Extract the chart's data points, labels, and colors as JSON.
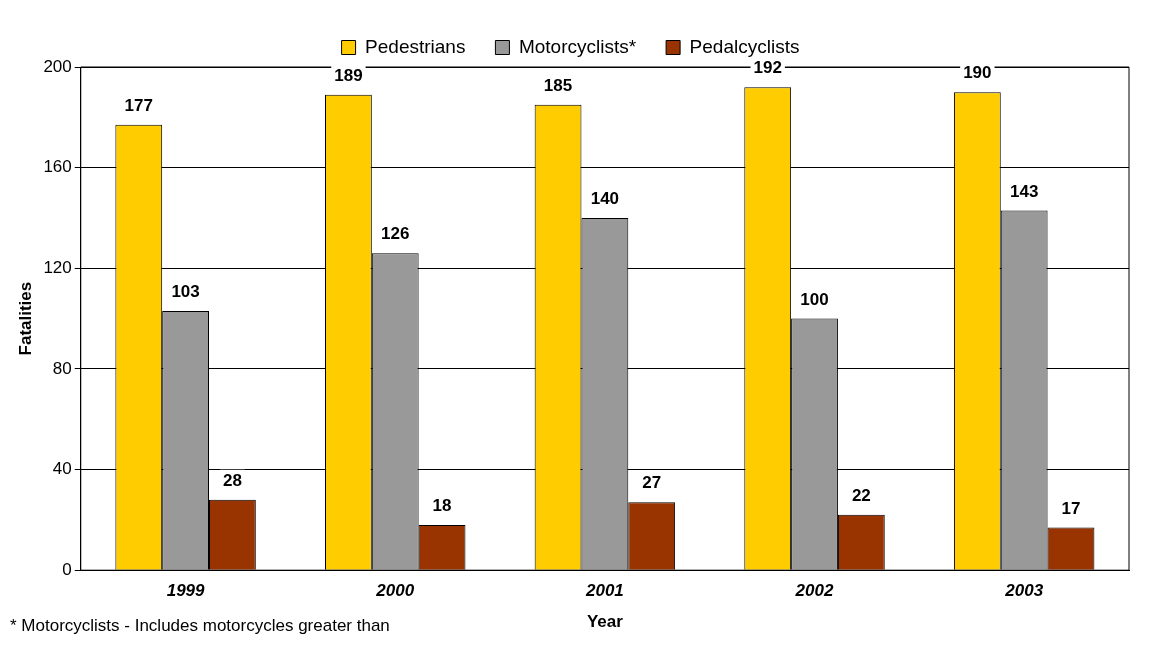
{
  "chart_data": {
    "type": "bar",
    "xlabel": "Year",
    "ylabel": "Fatalities",
    "categories": [
      "1999",
      "2000",
      "2001",
      "2002",
      "2003"
    ],
    "series": [
      {
        "name": "Pedestrians",
        "color": "#ffcc00",
        "values": [
          177,
          189,
          185,
          192,
          190
        ]
      },
      {
        "name": "Motorcyclists*",
        "color": "#999999",
        "values": [
          103,
          126,
          140,
          100,
          143
        ]
      },
      {
        "name": "Pedalcyclists",
        "color": "#993300",
        "values": [
          28,
          18,
          27,
          22,
          17
        ]
      }
    ],
    "ylim": [
      0,
      200
    ],
    "yticks": [
      0,
      40,
      80,
      120,
      160,
      200
    ],
    "grid": "y",
    "legend": "top",
    "data_labels": true,
    "annotations": [
      "* Motorcyclists - Includes motorcycles greater than"
    ]
  }
}
